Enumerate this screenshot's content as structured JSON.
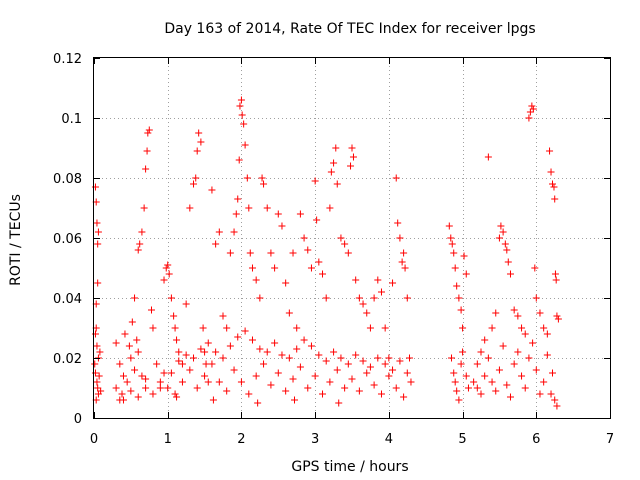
{
  "chart_data": {
    "type": "scatter",
    "title": "Day 163 of 2014, Rate Of TEC Index for receiver lpgs",
    "xlabel": "GPS time / hours",
    "ylabel": "ROTI / TECUs",
    "xlim": [
      0,
      7
    ],
    "ylim": [
      0,
      0.12
    ],
    "xticks": [
      0,
      1,
      2,
      3,
      4,
      5,
      6,
      7
    ],
    "yticks": [
      0,
      0.02,
      0.04,
      0.06,
      0.08,
      0.1,
      0.12
    ],
    "xtick_labels": [
      "0",
      "1",
      "2",
      "3",
      "4",
      "5",
      "6",
      "7"
    ],
    "ytick_labels": [
      "0",
      "0.02",
      "0.04",
      "0.06",
      "0.08",
      "0.1",
      "0.12"
    ],
    "grid": true,
    "marker": "+",
    "marker_color": "#ff0000",
    "series": [
      {
        "name": "ROTI",
        "points": [
          [
            0.02,
            0.077
          ],
          [
            0.03,
            0.072
          ],
          [
            0.04,
            0.065
          ],
          [
            0.05,
            0.058
          ],
          [
            0.06,
            0.062
          ],
          [
            0.05,
            0.045
          ],
          [
            0.03,
            0.038
          ],
          [
            0.02,
            0.028
          ],
          [
            0.04,
            0.024
          ],
          [
            0.06,
            0.02
          ],
          [
            0.02,
            0.015
          ],
          [
            0.04,
            0.012
          ],
          [
            0.06,
            0.008
          ],
          [
            0.03,
            0.006
          ],
          [
            0.05,
            0.01
          ],
          [
            0.07,
            0.014
          ],
          [
            0.01,
            0.018
          ],
          [
            0.08,
            0.022
          ],
          [
            0.03,
            0.03
          ],
          [
            0.09,
            0.009
          ],
          [
            0.3,
            0.025
          ],
          [
            0.35,
            0.018
          ],
          [
            0.4,
            0.014
          ],
          [
            0.45,
            0.012
          ],
          [
            0.5,
            0.02
          ],
          [
            0.55,
            0.016
          ],
          [
            0.6,
            0.056
          ],
          [
            0.62,
            0.058
          ],
          [
            0.65,
            0.062
          ],
          [
            0.68,
            0.07
          ],
          [
            0.7,
            0.083
          ],
          [
            0.72,
            0.089
          ],
          [
            0.73,
            0.095
          ],
          [
            0.75,
            0.096
          ],
          [
            0.78,
            0.036
          ],
          [
            0.8,
            0.03
          ],
          [
            0.55,
            0.04
          ],
          [
            0.6,
            0.022
          ],
          [
            0.65,
            0.014
          ],
          [
            0.7,
            0.01
          ],
          [
            0.38,
            0.008
          ],
          [
            0.42,
            0.028
          ],
          [
            0.48,
            0.024
          ],
          [
            0.52,
            0.032
          ],
          [
            0.58,
            0.026
          ],
          [
            0.85,
            0.018
          ],
          [
            0.9,
            0.012
          ],
          [
            0.95,
            0.046
          ],
          [
            0.98,
            0.05
          ],
          [
            1.0,
            0.051
          ],
          [
            1.02,
            0.048
          ],
          [
            1.05,
            0.04
          ],
          [
            1.08,
            0.034
          ],
          [
            1.1,
            0.03
          ],
          [
            1.12,
            0.026
          ],
          [
            1.15,
            0.022
          ],
          [
            1.2,
            0.018
          ],
          [
            1.25,
            0.038
          ],
          [
            1.3,
            0.07
          ],
          [
            1.35,
            0.078
          ],
          [
            1.38,
            0.08
          ],
          [
            1.4,
            0.089
          ],
          [
            1.42,
            0.095
          ],
          [
            1.45,
            0.092
          ],
          [
            1.48,
            0.03
          ],
          [
            1.5,
            0.022
          ],
          [
            1.52,
            0.018
          ],
          [
            1.55,
            0.012
          ],
          [
            1.6,
            0.076
          ],
          [
            1.65,
            0.058
          ],
          [
            1.7,
            0.062
          ],
          [
            1.75,
            0.034
          ],
          [
            1.8,
            0.03
          ],
          [
            1.85,
            0.055
          ],
          [
            1.9,
            0.062
          ],
          [
            1.93,
            0.068
          ],
          [
            1.95,
            0.073
          ],
          [
            1.97,
            0.086
          ],
          [
            1.98,
            0.104
          ],
          [
            2.0,
            0.106
          ],
          [
            2.01,
            0.101
          ],
          [
            2.03,
            0.098
          ],
          [
            2.05,
            0.091
          ],
          [
            2.08,
            0.08
          ],
          [
            2.1,
            0.07
          ],
          [
            2.12,
            0.055
          ],
          [
            2.15,
            0.05
          ],
          [
            2.2,
            0.046
          ],
          [
            2.25,
            0.04
          ],
          [
            2.28,
            0.08
          ],
          [
            2.3,
            0.078
          ],
          [
            2.35,
            0.07
          ],
          [
            2.4,
            0.055
          ],
          [
            2.45,
            0.05
          ],
          [
            2.5,
            0.068
          ],
          [
            2.55,
            0.064
          ],
          [
            2.6,
            0.045
          ],
          [
            2.65,
            0.035
          ],
          [
            2.7,
            0.055
          ],
          [
            2.75,
            0.03
          ],
          [
            2.8,
            0.068
          ],
          [
            2.85,
            0.06
          ],
          [
            2.9,
            0.056
          ],
          [
            2.95,
            0.05
          ],
          [
            3.0,
            0.079
          ],
          [
            3.02,
            0.066
          ],
          [
            3.05,
            0.052
          ],
          [
            3.1,
            0.048
          ],
          [
            3.15,
            0.04
          ],
          [
            3.2,
            0.07
          ],
          [
            3.22,
            0.082
          ],
          [
            3.25,
            0.085
          ],
          [
            3.28,
            0.09
          ],
          [
            3.3,
            0.078
          ],
          [
            3.35,
            0.06
          ],
          [
            3.4,
            0.058
          ],
          [
            3.45,
            0.055
          ],
          [
            3.48,
            0.084
          ],
          [
            3.5,
            0.09
          ],
          [
            3.52,
            0.087
          ],
          [
            3.55,
            0.046
          ],
          [
            3.6,
            0.04
          ],
          [
            3.65,
            0.038
          ],
          [
            3.7,
            0.035
          ],
          [
            3.75,
            0.03
          ],
          [
            3.8,
            0.04
          ],
          [
            3.85,
            0.046
          ],
          [
            3.9,
            0.042
          ],
          [
            3.95,
            0.03
          ],
          [
            4.0,
            0.02
          ],
          [
            4.05,
            0.045
          ],
          [
            4.1,
            0.08
          ],
          [
            4.12,
            0.065
          ],
          [
            4.15,
            0.06
          ],
          [
            4.18,
            0.052
          ],
          [
            4.2,
            0.055
          ],
          [
            4.22,
            0.05
          ],
          [
            4.25,
            0.04
          ],
          [
            4.28,
            0.02
          ],
          [
            4.3,
            0.012
          ],
          [
            1.0,
            0.01
          ],
          [
            1.05,
            0.015
          ],
          [
            1.1,
            0.008
          ],
          [
            1.2,
            0.012
          ],
          [
            1.3,
            0.016
          ],
          [
            1.4,
            0.01
          ],
          [
            1.5,
            0.014
          ],
          [
            1.6,
            0.018
          ],
          [
            1.7,
            0.012
          ],
          [
            1.8,
            0.009
          ],
          [
            1.9,
            0.016
          ],
          [
            2.0,
            0.012
          ],
          [
            2.1,
            0.008
          ],
          [
            2.2,
            0.014
          ],
          [
            2.3,
            0.018
          ],
          [
            2.4,
            0.011
          ],
          [
            2.5,
            0.015
          ],
          [
            2.6,
            0.009
          ],
          [
            2.7,
            0.013
          ],
          [
            2.8,
            0.017
          ],
          [
            2.9,
            0.01
          ],
          [
            3.0,
            0.014
          ],
          [
            3.1,
            0.008
          ],
          [
            3.2,
            0.012
          ],
          [
            3.3,
            0.016
          ],
          [
            3.4,
            0.01
          ],
          [
            3.5,
            0.013
          ],
          [
            3.6,
            0.009
          ],
          [
            3.7,
            0.015
          ],
          [
            3.8,
            0.011
          ],
          [
            3.9,
            0.008
          ],
          [
            4.0,
            0.014
          ],
          [
            4.1,
            0.01
          ],
          [
            4.2,
            0.007
          ],
          [
            0.3,
            0.01
          ],
          [
            0.4,
            0.006
          ],
          [
            0.5,
            0.009
          ],
          [
            0.6,
            0.007
          ],
          [
            0.7,
            0.013
          ],
          [
            0.8,
            0.008
          ],
          [
            0.9,
            0.01
          ],
          [
            0.95,
            0.015
          ],
          [
            1.15,
            0.019
          ],
          [
            1.25,
            0.021
          ],
          [
            1.35,
            0.02
          ],
          [
            1.45,
            0.023
          ],
          [
            1.55,
            0.025
          ],
          [
            1.65,
            0.022
          ],
          [
            1.75,
            0.02
          ],
          [
            1.85,
            0.024
          ],
          [
            1.95,
            0.027
          ],
          [
            2.05,
            0.029
          ],
          [
            2.15,
            0.026
          ],
          [
            2.25,
            0.023
          ],
          [
            2.35,
            0.022
          ],
          [
            2.45,
            0.025
          ],
          [
            2.55,
            0.021
          ],
          [
            2.65,
            0.02
          ],
          [
            2.75,
            0.023
          ],
          [
            2.85,
            0.026
          ],
          [
            2.95,
            0.024
          ],
          [
            3.05,
            0.021
          ],
          [
            3.15,
            0.019
          ],
          [
            3.25,
            0.022
          ],
          [
            3.35,
            0.02
          ],
          [
            3.45,
            0.018
          ],
          [
            3.55,
            0.021
          ],
          [
            3.65,
            0.019
          ],
          [
            3.75,
            0.017
          ],
          [
            3.85,
            0.02
          ],
          [
            3.95,
            0.018
          ],
          [
            4.05,
            0.016
          ],
          [
            4.15,
            0.019
          ],
          [
            4.25,
            0.015
          ],
          [
            0.35,
            0.006
          ],
          [
            1.12,
            0.007
          ],
          [
            1.62,
            0.006
          ],
          [
            2.22,
            0.005
          ],
          [
            2.72,
            0.006
          ],
          [
            3.32,
            0.005
          ],
          [
            4.82,
            0.064
          ],
          [
            4.84,
            0.06
          ],
          [
            4.86,
            0.058
          ],
          [
            4.88,
            0.055
          ],
          [
            4.9,
            0.05
          ],
          [
            4.92,
            0.044
          ],
          [
            4.95,
            0.04
          ],
          [
            4.98,
            0.036
          ],
          [
            5.0,
            0.03
          ],
          [
            5.02,
            0.054
          ],
          [
            5.05,
            0.048
          ],
          [
            4.85,
            0.02
          ],
          [
            4.88,
            0.015
          ],
          [
            4.9,
            0.012
          ],
          [
            4.92,
            0.009
          ],
          [
            4.95,
            0.006
          ],
          [
            4.98,
            0.018
          ],
          [
            5.0,
            0.022
          ],
          [
            5.05,
            0.014
          ],
          [
            5.08,
            0.01
          ],
          [
            5.2,
            0.018
          ],
          [
            5.25,
            0.022
          ],
          [
            5.3,
            0.026
          ],
          [
            5.35,
            0.087
          ],
          [
            5.4,
            0.03
          ],
          [
            5.45,
            0.035
          ],
          [
            5.5,
            0.06
          ],
          [
            5.52,
            0.064
          ],
          [
            5.55,
            0.062
          ],
          [
            5.58,
            0.058
          ],
          [
            5.6,
            0.056
          ],
          [
            5.62,
            0.052
          ],
          [
            5.65,
            0.048
          ],
          [
            5.7,
            0.036
          ],
          [
            5.75,
            0.034
          ],
          [
            5.8,
            0.03
          ],
          [
            5.85,
            0.028
          ],
          [
            5.9,
            0.1
          ],
          [
            5.92,
            0.102
          ],
          [
            5.94,
            0.104
          ],
          [
            5.96,
            0.103
          ],
          [
            5.98,
            0.05
          ],
          [
            6.0,
            0.04
          ],
          [
            6.05,
            0.035
          ],
          [
            6.1,
            0.03
          ],
          [
            6.15,
            0.028
          ],
          [
            6.18,
            0.089
          ],
          [
            6.2,
            0.082
          ],
          [
            6.22,
            0.078
          ],
          [
            6.24,
            0.077
          ],
          [
            6.25,
            0.073
          ],
          [
            6.26,
            0.048
          ],
          [
            6.27,
            0.046
          ],
          [
            6.28,
            0.034
          ],
          [
            6.3,
            0.033
          ],
          [
            5.2,
            0.01
          ],
          [
            5.3,
            0.014
          ],
          [
            5.4,
            0.012
          ],
          [
            5.5,
            0.016
          ],
          [
            5.6,
            0.011
          ],
          [
            5.7,
            0.018
          ],
          [
            5.8,
            0.014
          ],
          [
            5.9,
            0.02
          ],
          [
            6.0,
            0.016
          ],
          [
            6.1,
            0.012
          ],
          [
            6.2,
            0.008
          ],
          [
            6.25,
            0.006
          ],
          [
            6.28,
            0.004
          ],
          [
            5.25,
            0.008
          ],
          [
            5.45,
            0.009
          ],
          [
            5.65,
            0.007
          ],
          [
            5.85,
            0.01
          ],
          [
            6.05,
            0.008
          ],
          [
            5.35,
            0.02
          ],
          [
            5.55,
            0.024
          ],
          [
            5.75,
            0.022
          ],
          [
            5.95,
            0.025
          ],
          [
            6.15,
            0.021
          ],
          [
            5.15,
            0.012
          ],
          [
            6.22,
            0.015
          ]
        ]
      }
    ]
  }
}
